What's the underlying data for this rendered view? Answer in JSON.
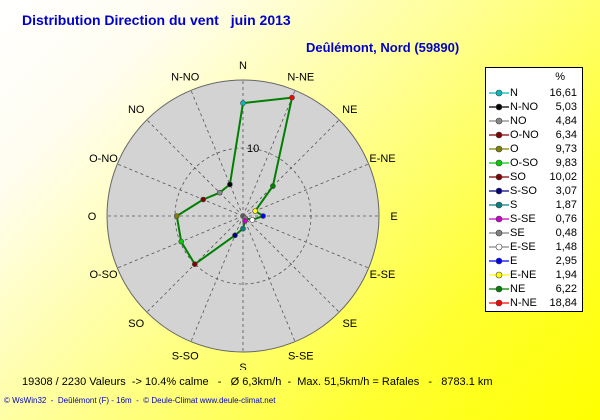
{
  "title": "Distribution Direction du vent",
  "period": "juin 2013",
  "station": "Deûlémont, Nord (59890)",
  "stats": "19308 / 2230 Valeurs  -> 10.4% calme   -   Ø 6,3km/h  -  Max. 51,5km/h = Rafales   -   8783.1 km",
  "footer": "© WsWin32  -  Deûlémont (F) - 16m  -  © Deule-Climat www.deule-climat.net",
  "chart_data": {
    "type": "radar",
    "title": "Distribution Direction du vent",
    "unit": "%",
    "ring_label": "10",
    "rlim": [
      0,
      20
    ],
    "grid": true,
    "legend": "right",
    "line_color": "#008000",
    "directions": [
      "N",
      "N-NE",
      "NE",
      "E-NE",
      "E",
      "E-SE",
      "SE",
      "S-SE",
      "S",
      "S-SO",
      "SO",
      "O-SO",
      "O",
      "O-NO",
      "NO",
      "N-NO"
    ],
    "values": [
      16.61,
      18.84,
      6.22,
      1.94,
      2.95,
      1.48,
      0.48,
      0.76,
      1.87,
      3.07,
      10.02,
      9.83,
      9.73,
      6.34,
      4.84,
      5.03
    ],
    "legend_entries": [
      {
        "name": "N",
        "value": "16,61",
        "color": "#00bbbb"
      },
      {
        "name": "N-NO",
        "value": "5,03",
        "color": "#000000"
      },
      {
        "name": "NO",
        "value": "4,84",
        "color": "#888888"
      },
      {
        "name": "O-NO",
        "value": "6,34",
        "color": "#800000"
      },
      {
        "name": "O",
        "value": "9,73",
        "color": "#808000"
      },
      {
        "name": "O-SO",
        "value": "9,83",
        "color": "#00cc00"
      },
      {
        "name": "SO",
        "value": "10,02",
        "color": "#800000"
      },
      {
        "name": "S-SO",
        "value": "3,07",
        "color": "#000080"
      },
      {
        "name": "S",
        "value": "1,87",
        "color": "#008080"
      },
      {
        "name": "S-SE",
        "value": "0,76",
        "color": "#cc00cc"
      },
      {
        "name": "SE",
        "value": "0,48",
        "color": "#808080"
      },
      {
        "name": "E-SE",
        "value": "1,48",
        "color": "#ffffff"
      },
      {
        "name": "E",
        "value": "2,95",
        "color": "#0000ff"
      },
      {
        "name": "E-NE",
        "value": "1,94",
        "color": "#ffff00"
      },
      {
        "name": "NE",
        "value": "6,22",
        "color": "#008000"
      },
      {
        "name": "N-NE",
        "value": "18,84",
        "color": "#ff0000"
      }
    ]
  }
}
